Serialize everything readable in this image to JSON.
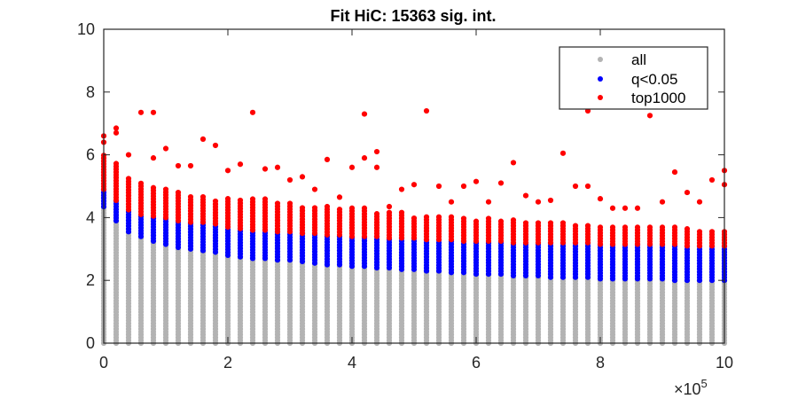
{
  "chart_data": {
    "type": "scatter",
    "title": "Fit HiC: 15363 sig. int.",
    "xlabel": "",
    "ylabel": "",
    "xlim": [
      0,
      1000000
    ],
    "ylim": [
      0,
      10
    ],
    "x_multiplier_label": "×10",
    "x_multiplier_exponent": "5",
    "x_ticks": [
      0,
      200000,
      400000,
      600000,
      800000,
      1000000
    ],
    "x_tick_labels": [
      "0",
      "2",
      "4",
      "6",
      "8",
      "10"
    ],
    "y_ticks": [
      0,
      2,
      4,
      6,
      8,
      10
    ],
    "y_tick_labels": [
      "0",
      "2",
      "4",
      "6",
      "8",
      "10"
    ],
    "grid": false,
    "legend_position": "top-right",
    "colors": {
      "all": "#b3b3b3",
      "sig": "#0000ff",
      "top": "#ff0000"
    },
    "distance_step": 20000,
    "series": [
      {
        "name": "all",
        "description_key": "all",
        "x": [
          0,
          20000,
          40000,
          60000,
          80000,
          100000,
          120000,
          140000,
          160000,
          180000,
          200000,
          220000,
          240000,
          260000,
          280000,
          300000,
          320000,
          340000,
          360000,
          380000,
          400000,
          420000,
          440000,
          460000,
          480000,
          500000,
          520000,
          540000,
          560000,
          580000,
          600000,
          620000,
          640000,
          660000,
          680000,
          700000,
          720000,
          740000,
          760000,
          780000,
          800000,
          820000,
          840000,
          860000,
          880000,
          900000,
          920000,
          940000,
          960000,
          980000,
          1000000
        ],
        "y_min": [
          0,
          0,
          0,
          0,
          0,
          0,
          0,
          0,
          0,
          0,
          0,
          0,
          0,
          0,
          0,
          0,
          0,
          0,
          0,
          0,
          0,
          0,
          0,
          0,
          0,
          0,
          0,
          0,
          0,
          0,
          0,
          0,
          0,
          0,
          0,
          0,
          0,
          0,
          0,
          0,
          0,
          0,
          0,
          0,
          0,
          0,
          0,
          0,
          0,
          0,
          0
        ],
        "y_max": [
          4.35,
          3.9,
          3.55,
          3.4,
          3.25,
          3.15,
          3.05,
          3.0,
          2.95,
          2.9,
          2.8,
          2.75,
          2.7,
          2.7,
          2.65,
          2.65,
          2.6,
          2.55,
          2.5,
          2.5,
          2.45,
          2.45,
          2.4,
          2.4,
          2.35,
          2.35,
          2.3,
          2.3,
          2.25,
          2.25,
          2.2,
          2.2,
          2.2,
          2.15,
          2.15,
          2.15,
          2.1,
          2.1,
          2.1,
          2.1,
          2.05,
          2.05,
          2.05,
          2.05,
          2.05,
          2.05,
          2.0,
          2.0,
          2.0,
          2.0,
          2.0
        ]
      },
      {
        "name": "q<0.05",
        "description_key": "sig",
        "x": [
          0,
          20000,
          40000,
          60000,
          80000,
          100000,
          120000,
          140000,
          160000,
          180000,
          200000,
          220000,
          240000,
          260000,
          280000,
          300000,
          320000,
          340000,
          360000,
          380000,
          400000,
          420000,
          440000,
          460000,
          480000,
          500000,
          520000,
          540000,
          560000,
          580000,
          600000,
          620000,
          640000,
          660000,
          680000,
          700000,
          720000,
          740000,
          760000,
          780000,
          800000,
          820000,
          840000,
          860000,
          880000,
          900000,
          920000,
          940000,
          960000,
          980000,
          1000000
        ],
        "y_min": [
          4.35,
          3.9,
          3.55,
          3.4,
          3.25,
          3.15,
          3.05,
          3.0,
          2.95,
          2.9,
          2.8,
          2.75,
          2.7,
          2.7,
          2.65,
          2.65,
          2.6,
          2.55,
          2.5,
          2.5,
          2.45,
          2.45,
          2.4,
          2.4,
          2.35,
          2.35,
          2.3,
          2.3,
          2.25,
          2.25,
          2.2,
          2.2,
          2.2,
          2.15,
          2.15,
          2.15,
          2.1,
          2.1,
          2.1,
          2.1,
          2.05,
          2.05,
          2.05,
          2.05,
          2.05,
          2.05,
          2.0,
          2.0,
          2.0,
          2.0,
          2.0
        ],
        "y_max": [
          4.9,
          4.55,
          4.25,
          4.1,
          4.05,
          4.0,
          3.9,
          3.85,
          3.85,
          3.8,
          3.7,
          3.65,
          3.6,
          3.6,
          3.55,
          3.55,
          3.5,
          3.5,
          3.45,
          3.45,
          3.4,
          3.4,
          3.4,
          3.35,
          3.35,
          3.35,
          3.3,
          3.3,
          3.3,
          3.25,
          3.25,
          3.25,
          3.25,
          3.2,
          3.2,
          3.2,
          3.2,
          3.2,
          3.2,
          3.2,
          3.15,
          3.15,
          3.15,
          3.15,
          3.15,
          3.15,
          3.15,
          3.1,
          3.1,
          3.1,
          3.1
        ]
      },
      {
        "name": "top1000",
        "description_key": "top",
        "x": [
          0,
          20000,
          40000,
          60000,
          80000,
          100000,
          120000,
          140000,
          160000,
          180000,
          200000,
          220000,
          240000,
          260000,
          280000,
          300000,
          320000,
          340000,
          360000,
          380000,
          400000,
          420000,
          440000,
          460000,
          480000,
          500000,
          520000,
          540000,
          560000,
          580000,
          600000,
          620000,
          640000,
          660000,
          680000,
          700000,
          720000,
          740000,
          760000,
          780000,
          800000,
          820000,
          840000,
          860000,
          880000,
          900000,
          920000,
          940000,
          960000,
          980000,
          1000000
        ],
        "y_min": [
          4.9,
          4.55,
          4.25,
          4.1,
          4.05,
          4.0,
          3.9,
          3.85,
          3.85,
          3.8,
          3.7,
          3.65,
          3.6,
          3.6,
          3.55,
          3.55,
          3.5,
          3.5,
          3.45,
          3.45,
          3.4,
          3.4,
          3.4,
          3.35,
          3.35,
          3.35,
          3.3,
          3.3,
          3.3,
          3.25,
          3.25,
          3.25,
          3.25,
          3.2,
          3.2,
          3.2,
          3.2,
          3.2,
          3.2,
          3.2,
          3.15,
          3.15,
          3.15,
          3.15,
          3.15,
          3.15,
          3.15,
          3.1,
          3.1,
          3.1,
          3.1
        ],
        "y_max": [
          6.0,
          5.8,
          5.3,
          5.15,
          5.0,
          4.95,
          4.8,
          4.7,
          4.7,
          4.55,
          4.6,
          4.55,
          4.6,
          4.65,
          4.5,
          4.45,
          4.35,
          4.35,
          4.4,
          4.3,
          4.3,
          4.3,
          4.2,
          4.2,
          4.2,
          4.0,
          4.1,
          4.1,
          4.05,
          4.0,
          3.9,
          4.0,
          3.9,
          3.95,
          3.9,
          3.85,
          3.85,
          3.85,
          3.8,
          3.8,
          3.7,
          3.75,
          3.75,
          3.7,
          3.7,
          3.7,
          3.7,
          3.7,
          3.6,
          3.6,
          3.6
        ],
        "outliers": [
          [
            0,
            6.6
          ],
          [
            0,
            6.4
          ],
          [
            20000,
            6.85
          ],
          [
            20000,
            6.7
          ],
          [
            40000,
            6.0
          ],
          [
            60000,
            7.35
          ],
          [
            80000,
            7.35
          ],
          [
            80000,
            5.9
          ],
          [
            100000,
            6.2
          ],
          [
            120000,
            5.65
          ],
          [
            140000,
            5.65
          ],
          [
            160000,
            6.5
          ],
          [
            180000,
            6.3
          ],
          [
            200000,
            5.5
          ],
          [
            220000,
            5.7
          ],
          [
            240000,
            7.35
          ],
          [
            260000,
            5.55
          ],
          [
            280000,
            5.6
          ],
          [
            300000,
            5.2
          ],
          [
            320000,
            5.3
          ],
          [
            340000,
            4.9
          ],
          [
            360000,
            5.85
          ],
          [
            380000,
            4.65
          ],
          [
            400000,
            5.6
          ],
          [
            420000,
            7.3
          ],
          [
            420000,
            5.9
          ],
          [
            440000,
            6.1
          ],
          [
            440000,
            5.6
          ],
          [
            460000,
            4.35
          ],
          [
            480000,
            4.9
          ],
          [
            500000,
            5.05
          ],
          [
            520000,
            7.4
          ],
          [
            540000,
            5.0
          ],
          [
            560000,
            4.5
          ],
          [
            580000,
            5.0
          ],
          [
            600000,
            5.15
          ],
          [
            620000,
            4.5
          ],
          [
            640000,
            5.1
          ],
          [
            660000,
            5.75
          ],
          [
            680000,
            4.7
          ],
          [
            700000,
            4.5
          ],
          [
            720000,
            4.55
          ],
          [
            740000,
            6.05
          ],
          [
            760000,
            5.0
          ],
          [
            780000,
            5.0
          ],
          [
            800000,
            4.6
          ],
          [
            820000,
            4.3
          ],
          [
            840000,
            4.3
          ],
          [
            860000,
            4.3
          ],
          [
            880000,
            7.25
          ],
          [
            900000,
            4.5
          ],
          [
            920000,
            5.45
          ],
          [
            940000,
            4.8
          ],
          [
            960000,
            4.5
          ],
          [
            980000,
            5.2
          ],
          [
            1000000,
            5.5
          ],
          [
            1000000,
            5.05
          ],
          [
            780000,
            7.4
          ]
        ]
      }
    ]
  }
}
